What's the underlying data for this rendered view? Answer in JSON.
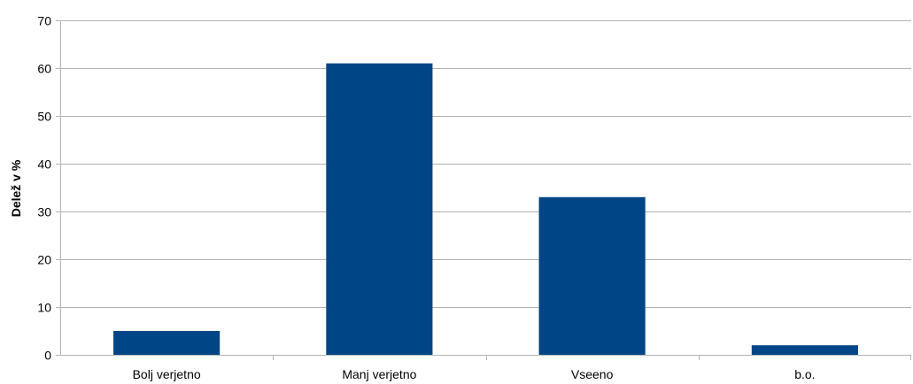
{
  "chart_data": {
    "type": "bar",
    "title": "",
    "xlabel": "",
    "ylabel": "Delež v %",
    "categories": [
      "Bolj verjetno",
      "Manj verjetno",
      "Vseeno",
      "b.o."
    ],
    "values": [
      5,
      61,
      33,
      2
    ],
    "ylim": [
      0,
      70
    ],
    "yticks": [
      0,
      10,
      20,
      30,
      40,
      50,
      60,
      70
    ],
    "grid": true,
    "legend": "none",
    "bar_color": "#004586",
    "grid_color": "#b3b3b3"
  }
}
